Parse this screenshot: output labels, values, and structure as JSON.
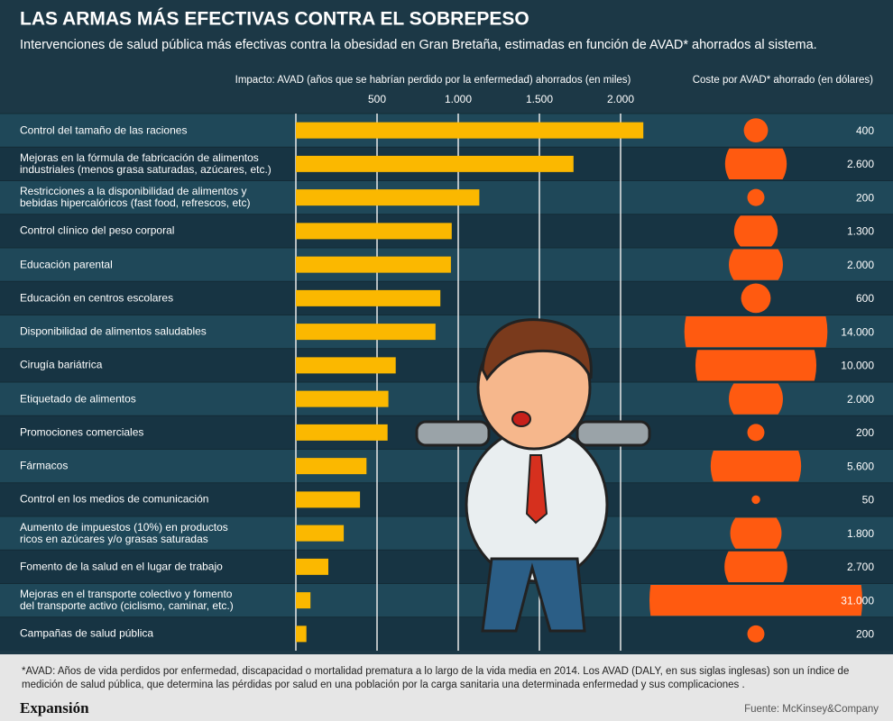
{
  "chart_data": {
    "type": "bar",
    "title": "LAS ARMAS MÁS EFECTIVAS CONTRA EL SOBREPESO",
    "subtitle": "Intervenciones de salud pública más efectivas contra la obesidad en Gran Bretaña, estimadas en función de AVAD* ahorrados al sistema.",
    "categories": [
      "Control del tamaño de las raciones",
      "Mejoras en la fórmula de fabricación de alimentos\nindustriales (menos grasa saturadas, azúcares, etc.)",
      "Restricciones a la disponibilidad de alimentos y\nbebidas hipercalóricos (fast food, refrescos, etc)",
      "Control clínico del peso corporal",
      "Educación parental",
      "Educación en centros escolares",
      "Disponibilidad de alimentos saludables",
      "Cirugía bariátrica",
      "Etiquetado de alimentos",
      "Promociones comerciales",
      "Fármacos",
      "Control en los medios de comunicación",
      "Aumento de impuestos (10%) en productos\nricos en azúcares y/o grasas saturadas",
      "Fomento de la salud en el lugar de trabajo",
      "Mejoras en el transporte colectivo y fomento\ndel transporte activo (ciclismo, caminar, etc.)",
      "Campañas de salud pública"
    ],
    "series": [
      {
        "name": "Impacto: AVAD (años que se habrían perdido por la enfermedad) ahorrados (en miles)",
        "color": "#fbb800",
        "values": [
          2140,
          1710,
          1130,
          960,
          955,
          890,
          860,
          615,
          570,
          565,
          435,
          395,
          295,
          200,
          90,
          65
        ]
      },
      {
        "name": "Coste por AVAD* ahorrado (en dólares)",
        "color": "#ff5a10",
        "values": [
          400,
          2600,
          200,
          1300,
          2000,
          600,
          14000,
          10000,
          2000,
          200,
          5600,
          50,
          1800,
          2700,
          31000,
          200
        ],
        "value_labels": [
          "400",
          "2.600",
          "200",
          "1.300",
          "2.000",
          "600",
          "14.000",
          "10.000",
          "2.000",
          "200",
          "5.600",
          "50",
          "1.800",
          "2.700",
          "31.000",
          "200"
        ]
      }
    ],
    "xlim": [
      0,
      2200
    ],
    "xticks": [
      500,
      {
        "value": 1000,
        "label": "1.000"
      },
      {
        "value": 1500,
        "label": "1.500"
      },
      {
        "value": 2000,
        "label": "2.000"
      }
    ],
    "grid": true,
    "footnote": "*AVAD: Años de vida perdidos por enfermedad, discapacidad o mortalidad prematura a lo largo de la vida media en 2014.   Los AVAD (DALY, en sus siglas inglesas) son un índice de medición de salud pública, que determina las pérdidas por salud en una población por la carga sanitaria una determinada enfermedad y sus complicaciones .",
    "brand": "Expansión",
    "source": "Fuente: McKinsey&Company"
  }
}
